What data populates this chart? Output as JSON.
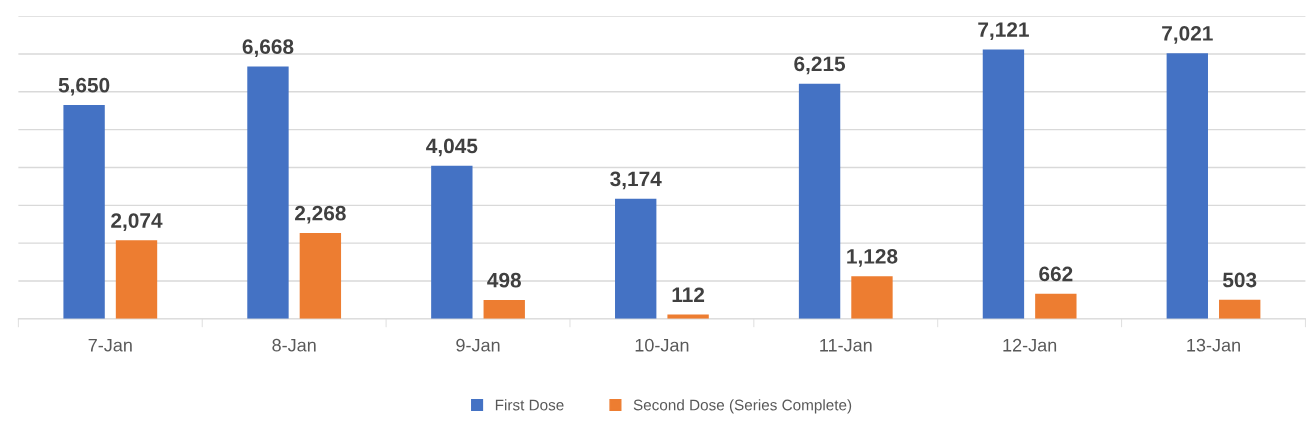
{
  "chart_data": {
    "type": "bar",
    "categories": [
      "7-Jan",
      "8-Jan",
      "9-Jan",
      "10-Jan",
      "11-Jan",
      "12-Jan",
      "13-Jan"
    ],
    "series": [
      {
        "name": "First Dose",
        "color": "#4472c4",
        "values": [
          5650,
          6668,
          4045,
          3174,
          6215,
          7121,
          7021
        ],
        "value_labels": [
          "5,650",
          "6,668",
          "4,045",
          "3,174",
          "6,215",
          "7,121",
          "7,021"
        ]
      },
      {
        "name": "Second Dose (Series Complete)",
        "color": "#ed7d31",
        "values": [
          2074,
          2268,
          498,
          112,
          1128,
          662,
          503
        ],
        "value_labels": [
          "2,074",
          "2,268",
          "498",
          "112",
          "1,128",
          "662",
          "503"
        ]
      }
    ],
    "ylim": [
      0,
      8000
    ],
    "yticks": [
      {
        "value": 0,
        "label": null
      },
      {
        "value": 1000,
        "label": null
      },
      {
        "value": 2000,
        "label": null
      },
      {
        "value": 3000,
        "label": null
      },
      {
        "value": 4000,
        "label": null
      },
      {
        "value": 5000,
        "label": null
      },
      {
        "value": 6000,
        "label": null
      },
      {
        "value": 7000,
        "label": null
      },
      {
        "value": 8000,
        "label": null
      }
    ],
    "tick_labels": "x",
    "grid": "y",
    "legend": "bottom"
  }
}
